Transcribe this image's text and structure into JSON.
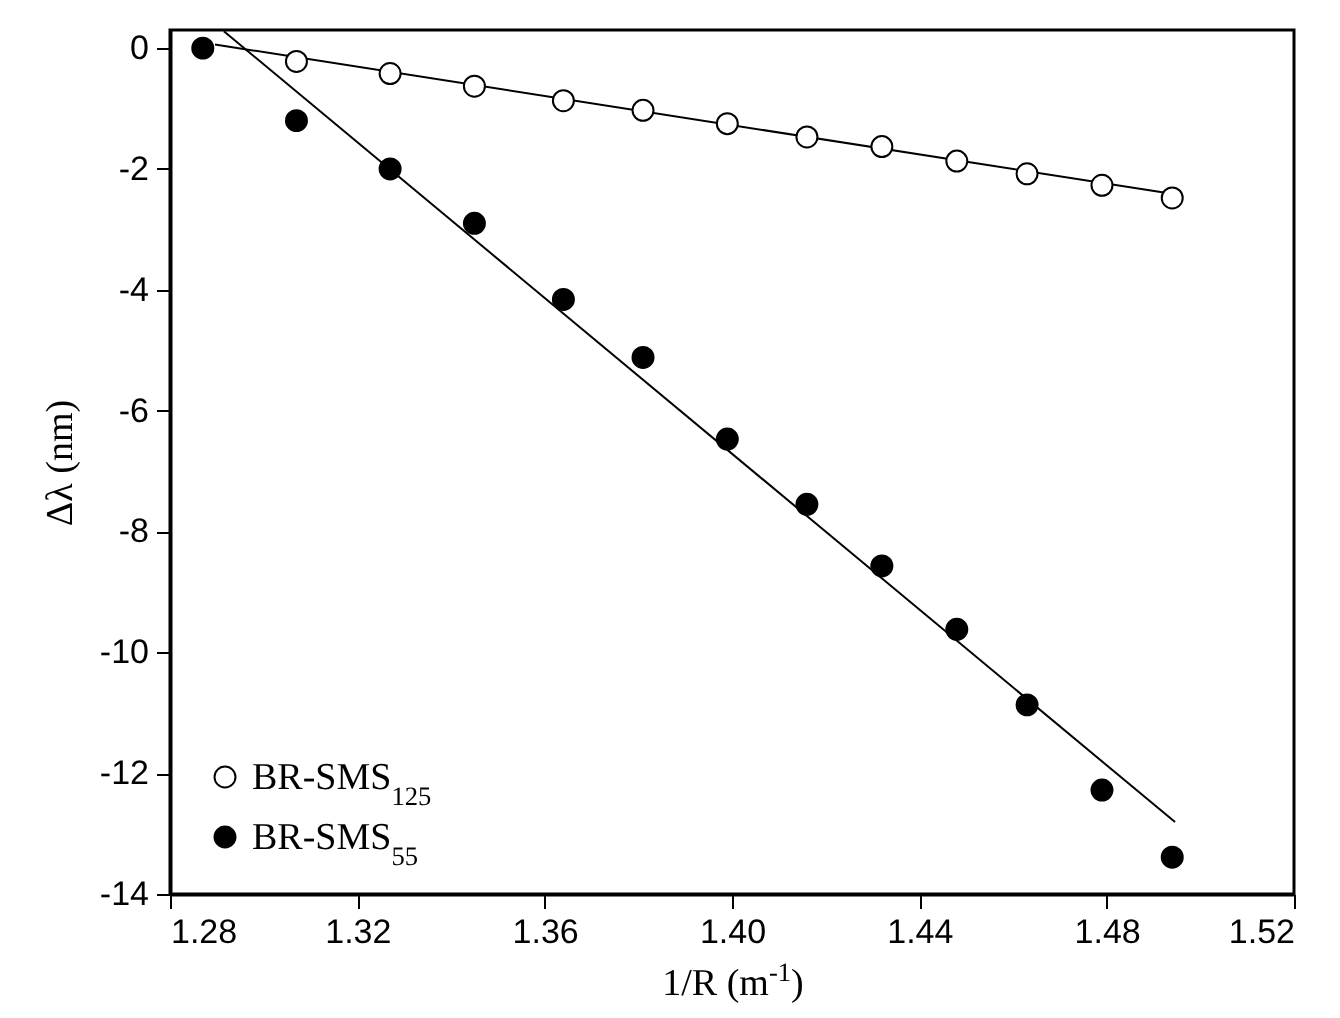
{
  "chart_data": {
    "type": "scatter",
    "xlabel": "1/R (m$^{-1}$)",
    "ylabel": "Δλ (nm)",
    "xlim": [
      1.28,
      1.52
    ],
    "xticks": [
      {
        "value": 1.28,
        "label": "1.28"
      },
      {
        "value": 1.32,
        "label": "1.32"
      },
      {
        "value": 1.36,
        "label": "1.36"
      },
      {
        "value": 1.4,
        "label": "1.40"
      },
      {
        "value": 1.44,
        "label": "1.44"
      },
      {
        "value": 1.48,
        "label": "1.48"
      },
      {
        "value": 1.52,
        "label": "1.52"
      }
    ],
    "ylim": [
      -14,
      0.3
    ],
    "yticks": [
      -14,
      -12,
      -10,
      -8,
      -6,
      -4,
      -2,
      0
    ],
    "grid": false,
    "legend": "bottom left",
    "marker": "circle",
    "series": [
      {
        "name": "BR-SMS$_{125}$",
        "color": "#000000",
        "x": [
          1.307,
          1.327,
          1.345,
          1.364,
          1.381,
          1.399,
          1.416,
          1.432,
          1.448,
          1.463,
          1.479,
          1.494
        ],
        "values": [
          -0.22,
          -0.42,
          -0.63,
          -0.87,
          -1.03,
          -1.25,
          -1.47,
          -1.63,
          -1.87,
          -2.08,
          -2.27,
          -2.48
        ]
      },
      {
        "name": "BR-SMS$_{55}$",
        "color": "#000000",
        "x": [
          1.287,
          1.307,
          1.327,
          1.345,
          1.364,
          1.381,
          1.399,
          1.416,
          1.432,
          1.448,
          1.463,
          1.479,
          1.494
        ],
        "values": [
          0,
          -1.2,
          -2.0,
          -2.9,
          -4.16,
          -5.12,
          -6.47,
          -7.55,
          -8.57,
          -9.62,
          -10.87,
          -12.28,
          -13.39
        ]
      },
      {
        "type": "line",
        "marker": "none",
        "color": "#000000",
        "x": [
          1.2896,
          1.4946
        ],
        "values": [
          0.06,
          -2.42
        ]
      },
      {
        "type": "line",
        "marker": "none",
        "color": "#000000",
        "x": [
          1.2915,
          1.4946
        ],
        "values": [
          0.28,
          -12.81
        ]
      }
    ]
  }
}
